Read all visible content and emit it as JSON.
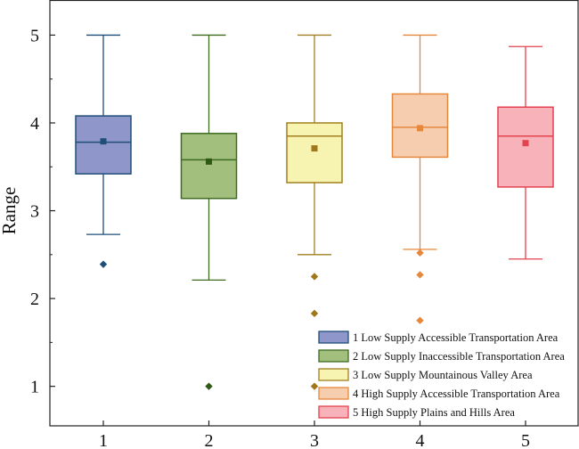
{
  "chart_data": {
    "type": "box",
    "title": "",
    "xlabel": "",
    "ylabel": "Range",
    "ylim": [
      0.55,
      5.4
    ],
    "yticks": [
      1,
      2,
      3,
      4,
      5
    ],
    "categories": [
      "1",
      "2",
      "3",
      "4",
      "5"
    ],
    "grid": false,
    "legend_position": "bottom-right",
    "series": [
      {
        "name": "1 Low Supply Accessible Transportation Area",
        "min": 2.73,
        "q1": 3.42,
        "median": 3.78,
        "q3": 4.08,
        "max": 5.0,
        "mean": 3.79,
        "outliers": [
          2.39
        ],
        "stroke": "#1f4e79",
        "fill": "#8f96c9",
        "marker": "#1f4e79"
      },
      {
        "name": "2 Low Supply Inaccessible Transportation Area",
        "min": 2.21,
        "q1": 3.14,
        "median": 3.58,
        "q3": 3.88,
        "max": 5.0,
        "mean": 3.56,
        "outliers": [
          1.0
        ],
        "stroke": "#3d6b1f",
        "fill": "#a3bf7e",
        "marker": "#2e5a14"
      },
      {
        "name": "3 Low Supply Mountainous Valley Area",
        "min": 2.5,
        "q1": 3.32,
        "median": 3.85,
        "q3": 4.0,
        "max": 5.0,
        "mean": 3.71,
        "outliers": [
          2.25,
          1.83,
          1.0
        ],
        "stroke": "#a08020",
        "fill": "#f7f4b2",
        "marker": "#a0781a"
      },
      {
        "name": "4 High Supply Accessible Transportation Area",
        "min": 2.56,
        "q1": 3.61,
        "median": 3.95,
        "q3": 4.33,
        "max": 5.0,
        "mean": 3.94,
        "outliers": [
          2.52,
          2.27,
          1.75
        ],
        "stroke": "#e6883c",
        "fill": "#f7cdb0",
        "marker": "#e6883c"
      },
      {
        "name": "5 High Supply Plains and Hills Area",
        "min": 2.45,
        "q1": 3.27,
        "median": 3.85,
        "q3": 4.18,
        "max": 4.87,
        "mean": 3.77,
        "outliers": [],
        "stroke": "#e3424f",
        "fill": "#f7b3b9",
        "marker": "#e3424f"
      }
    ]
  }
}
